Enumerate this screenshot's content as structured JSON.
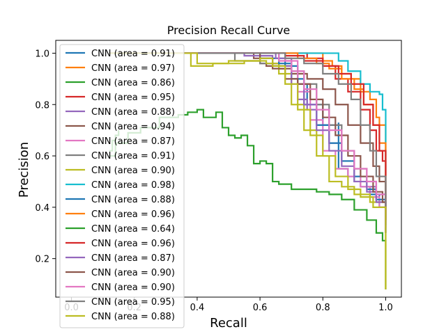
{
  "chart_data": {
    "type": "line",
    "title": "Precision Recall Curve",
    "xlabel": "Recall",
    "ylabel": "Precision",
    "xlim": [
      -0.05,
      1.05
    ],
    "ylim": [
      0.05,
      1.05
    ],
    "xticks": [
      0.0,
      0.2,
      0.4,
      0.6,
      0.8,
      1.0
    ],
    "yticks": [
      0.2,
      0.4,
      0.6,
      0.8,
      1.0
    ],
    "xtick_labels": [
      "0.0",
      "0.2",
      "0.4",
      "0.6",
      "0.8",
      "1.0"
    ],
    "ytick_labels": [
      "0.2",
      "0.4",
      "0.6",
      "0.8",
      "1.0"
    ],
    "grid": false,
    "legend_position": "upper-left",
    "series": [
      {
        "name": "CNN (area = 0.91)",
        "color": "#1f77b4",
        "x": [
          0.12,
          0.2,
          0.4,
          0.59,
          0.6,
          0.68,
          0.72,
          0.75,
          0.8,
          0.85,
          0.85,
          0.88,
          0.9,
          0.92,
          0.95,
          0.98,
          1.0,
          1.0
        ],
        "y": [
          1.0,
          1.0,
          1.0,
          1.0,
          0.98,
          0.95,
          0.88,
          0.8,
          0.72,
          0.73,
          0.55,
          0.52,
          0.5,
          0.48,
          0.45,
          0.4,
          0.38,
          0.3
        ]
      },
      {
        "name": "CNN (area = 0.97)",
        "color": "#ff7f0e",
        "x": [
          0.12,
          0.3,
          0.5,
          0.7,
          0.8,
          0.83,
          0.86,
          0.89,
          0.92,
          0.95,
          0.97,
          0.98,
          1.0,
          1.0
        ],
        "y": [
          1.0,
          1.0,
          1.0,
          1.0,
          0.97,
          0.95,
          0.92,
          0.9,
          0.85,
          0.82,
          0.75,
          0.72,
          0.55,
          0.35
        ]
      },
      {
        "name": "CNN (area = 0.86)",
        "color": "#2ca02c",
        "x": [
          0.12,
          0.14,
          0.18,
          0.22,
          0.28,
          0.34,
          0.37,
          0.4,
          0.42,
          0.46,
          0.48,
          0.5,
          0.52,
          0.54,
          0.56,
          0.58,
          0.6,
          0.62,
          0.64,
          0.66,
          0.7,
          0.74,
          0.78,
          0.82,
          0.86,
          0.9,
          0.94,
          0.97,
          0.99,
          1.0,
          1.0
        ],
        "y": [
          0.6,
          0.65,
          0.69,
          0.71,
          0.75,
          0.76,
          0.77,
          0.78,
          0.75,
          0.77,
          0.71,
          0.68,
          0.67,
          0.68,
          0.64,
          0.57,
          0.58,
          0.57,
          0.5,
          0.49,
          0.47,
          0.47,
          0.46,
          0.45,
          0.43,
          0.39,
          0.35,
          0.3,
          0.27,
          0.27,
          0.08
        ]
      },
      {
        "name": "CNN (area = 0.95)",
        "color": "#d62728",
        "x": [
          0.12,
          0.4,
          0.6,
          0.68,
          0.75,
          0.8,
          0.84,
          0.88,
          0.92,
          0.95,
          0.97,
          0.99,
          1.0,
          1.0
        ],
        "y": [
          1.0,
          1.0,
          1.0,
          1.0,
          0.98,
          0.95,
          0.9,
          0.85,
          0.78,
          0.7,
          0.62,
          0.58,
          0.55,
          0.35
        ]
      },
      {
        "name": "CNN (area = 0.88)",
        "color": "#9467bd",
        "x": [
          0.12,
          0.3,
          0.55,
          0.65,
          0.7,
          0.72,
          0.75,
          0.78,
          0.82,
          0.86,
          0.9,
          0.94,
          0.97,
          1.0,
          1.0
        ],
        "y": [
          1.0,
          1.0,
          1.0,
          0.98,
          0.9,
          0.82,
          0.78,
          0.72,
          0.65,
          0.58,
          0.52,
          0.48,
          0.45,
          0.4,
          0.33
        ]
      },
      {
        "name": "CNN (area = 0.94)",
        "color": "#8c564b",
        "x": [
          0.12,
          0.5,
          0.58,
          0.6,
          0.62,
          0.66,
          0.7,
          0.75,
          0.8,
          0.84,
          0.88,
          0.92,
          0.96,
          0.98,
          1.0,
          1.0
        ],
        "y": [
          1.0,
          1.0,
          0.98,
          0.96,
          0.95,
          0.94,
          0.92,
          0.9,
          0.86,
          0.8,
          0.72,
          0.65,
          0.56,
          0.5,
          0.45,
          0.35
        ]
      },
      {
        "name": "CNN (area = 0.87)",
        "color": "#e377c2",
        "x": [
          0.12,
          0.3,
          0.6,
          0.68,
          0.72,
          0.76,
          0.8,
          0.84,
          0.88,
          0.92,
          0.95,
          0.98,
          1.0,
          1.0
        ],
        "y": [
          1.0,
          1.0,
          1.0,
          0.97,
          0.85,
          0.74,
          0.62,
          0.55,
          0.52,
          0.48,
          0.44,
          0.4,
          0.36,
          0.32
        ]
      },
      {
        "name": "CNN (area = 0.91)",
        "color": "#7f7f7f",
        "x": [
          0.12,
          0.45,
          0.52,
          0.6,
          0.66,
          0.7,
          0.74,
          0.78,
          0.82,
          0.86,
          0.9,
          0.94,
          0.97,
          1.0,
          1.0
        ],
        "y": [
          1.0,
          1.0,
          0.97,
          0.96,
          0.95,
          0.93,
          0.88,
          0.8,
          0.72,
          0.62,
          0.55,
          0.5,
          0.42,
          0.38,
          0.3
        ]
      },
      {
        "name": "CNN (area = 0.90)",
        "color": "#bcbd22",
        "x": [
          0.12,
          0.35,
          0.38,
          0.45,
          0.55,
          0.62,
          0.66,
          0.7,
          0.74,
          0.78,
          0.82,
          0.86,
          0.9,
          0.95,
          1.0,
          1.0
        ],
        "y": [
          1.0,
          1.0,
          0.95,
          0.96,
          0.97,
          0.96,
          0.92,
          0.8,
          0.7,
          0.6,
          0.5,
          0.48,
          0.45,
          0.42,
          0.38,
          0.08
        ]
      },
      {
        "name": "CNN (area = 0.98)",
        "color": "#17becf",
        "x": [
          0.12,
          0.5,
          0.7,
          0.84,
          0.85,
          0.88,
          0.92,
          0.95,
          0.98,
          0.99,
          1.0,
          1.0
        ],
        "y": [
          1.0,
          1.0,
          1.0,
          1.0,
          0.97,
          0.93,
          0.88,
          0.85,
          0.84,
          0.78,
          0.61,
          0.4
        ]
      },
      {
        "name": "CNN (area = 0.88)",
        "color": "#1f77b4",
        "x": [
          0.12,
          0.4,
          0.58,
          0.66,
          0.7,
          0.74,
          0.78,
          0.82,
          0.86,
          0.9,
          0.94,
          0.97,
          1.0,
          1.0
        ],
        "y": [
          1.0,
          1.0,
          1.0,
          0.96,
          0.9,
          0.8,
          0.72,
          0.65,
          0.58,
          0.52,
          0.47,
          0.43,
          0.4,
          0.3
        ]
      },
      {
        "name": "CNN (area = 0.96)",
        "color": "#ff7f0e",
        "x": [
          0.12,
          0.4,
          0.66,
          0.72,
          0.78,
          0.82,
          0.86,
          0.9,
          0.93,
          0.96,
          0.98,
          1.0,
          1.0
        ],
        "y": [
          1.0,
          1.0,
          1.0,
          0.98,
          0.96,
          0.94,
          0.9,
          0.86,
          0.8,
          0.72,
          0.65,
          0.55,
          0.35
        ]
      },
      {
        "name": "CNN (area = 0.64)",
        "color": "#2ca02c",
        "x": [
          0.12,
          0.13,
          0.14,
          0.15
        ],
        "y": [
          0.62,
          0.66,
          0.68,
          0.7
        ]
      },
      {
        "name": "CNN (area = 0.96)",
        "color": "#d62728",
        "x": [
          0.12,
          0.45,
          0.62,
          0.68,
          0.74,
          0.8,
          0.85,
          0.89,
          0.93,
          0.96,
          0.98,
          1.0,
          1.0
        ],
        "y": [
          1.0,
          1.0,
          1.0,
          0.99,
          0.97,
          0.95,
          0.92,
          0.88,
          0.8,
          0.72,
          0.62,
          0.5,
          0.35
        ]
      },
      {
        "name": "CNN (area = 0.87)",
        "color": "#9467bd",
        "x": [
          0.12,
          0.3,
          0.55,
          0.64,
          0.7,
          0.74,
          0.78,
          0.82,
          0.86,
          0.9,
          0.94,
          0.97,
          1.0,
          1.0
        ],
        "y": [
          1.0,
          1.0,
          0.99,
          0.95,
          0.88,
          0.8,
          0.7,
          0.62,
          0.56,
          0.5,
          0.46,
          0.42,
          0.38,
          0.3
        ]
      },
      {
        "name": "CNN (area = 0.90)",
        "color": "#8c564b",
        "x": [
          0.12,
          0.4,
          0.6,
          0.64,
          0.68,
          0.72,
          0.76,
          0.8,
          0.84,
          0.88,
          0.92,
          0.96,
          0.99,
          1.0
        ],
        "y": [
          1.0,
          1.0,
          0.98,
          0.94,
          0.9,
          0.88,
          0.82,
          0.75,
          0.68,
          0.6,
          0.52,
          0.46,
          0.42,
          0.3
        ]
      },
      {
        "name": "CNN (area = 0.90)",
        "color": "#e377c2",
        "x": [
          0.12,
          0.4,
          0.6,
          0.66,
          0.7,
          0.74,
          0.78,
          0.82,
          0.86,
          0.9,
          0.94,
          0.97,
          1.0,
          1.0
        ],
        "y": [
          1.0,
          1.0,
          1.0,
          0.97,
          0.93,
          0.86,
          0.78,
          0.7,
          0.62,
          0.55,
          0.5,
          0.45,
          0.4,
          0.32
        ]
      },
      {
        "name": "CNN (area = 0.95)",
        "color": "#7f7f7f",
        "x": [
          0.12,
          0.45,
          0.6,
          0.68,
          0.74,
          0.8,
          0.85,
          0.89,
          0.92,
          0.95,
          0.97,
          1.0,
          1.0
        ],
        "y": [
          1.0,
          1.0,
          1.0,
          0.98,
          0.96,
          0.92,
          0.88,
          0.82,
          0.72,
          0.62,
          0.52,
          0.42,
          0.33
        ]
      },
      {
        "name": "CNN (area = 0.88)",
        "color": "#bcbd22",
        "x": [
          0.12,
          0.36,
          0.4,
          0.5,
          0.6,
          0.64,
          0.68,
          0.72,
          0.76,
          0.8,
          0.84,
          0.88,
          0.92,
          0.96,
          1.0,
          1.0
        ],
        "y": [
          1.0,
          1.0,
          0.96,
          0.97,
          0.98,
          0.95,
          0.88,
          0.78,
          0.68,
          0.6,
          0.52,
          0.47,
          0.44,
          0.4,
          0.36,
          0.08
        ]
      }
    ]
  }
}
